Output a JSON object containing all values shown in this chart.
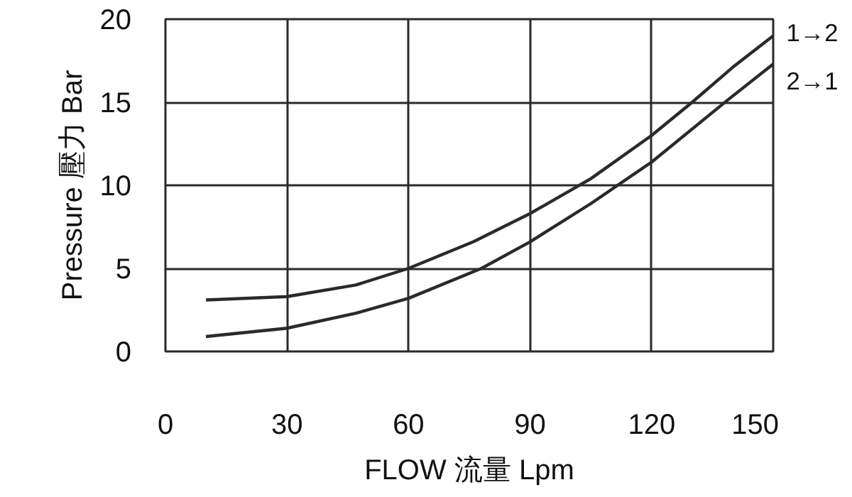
{
  "chart_data": {
    "type": "line",
    "xlabel": "FLOW 流量 Lpm",
    "ylabel": "Pressure 壓力 Bar",
    "xlim": [
      0,
      150
    ],
    "ylim": [
      0,
      20
    ],
    "xticks": [
      0,
      30,
      60,
      90,
      120,
      150
    ],
    "yticks": [
      0,
      5,
      10,
      15,
      20
    ],
    "grid": true,
    "line_style": "solid",
    "marker": "none",
    "series": [
      {
        "name": "1→2",
        "color": "#2a2a2a",
        "x": [
          10,
          30,
          47,
          60,
          76,
          90,
          105,
          120,
          130,
          140,
          150
        ],
        "values": [
          3.1,
          3.3,
          4.0,
          5.0,
          6.6,
          8.3,
          10.4,
          13.0,
          15.0,
          17.1,
          19.0
        ]
      },
      {
        "name": "2→1",
        "color": "#2a2a2a",
        "x": [
          10,
          30,
          47,
          60,
          78,
          90,
          105,
          120,
          138.6,
          150
        ],
        "values": [
          0.9,
          1.4,
          2.3,
          3.2,
          5.0,
          6.6,
          8.9,
          11.4,
          15.1,
          17.3
        ]
      }
    ]
  }
}
